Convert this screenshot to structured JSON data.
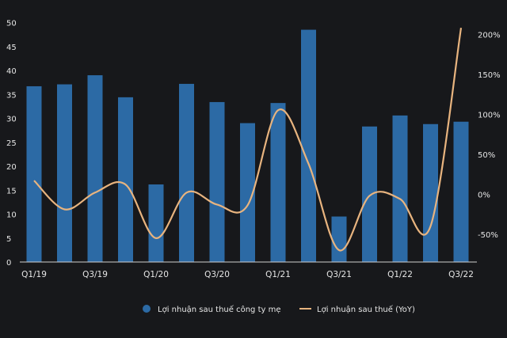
{
  "chart_data": {
    "type": "bar+line",
    "title": "",
    "categories": [
      "Q1/19",
      "Q2/19",
      "Q3/19",
      "Q4/19",
      "Q1/20",
      "Q2/20",
      "Q3/20",
      "Q4/20",
      "Q1/21",
      "Q2/21",
      "Q3/21",
      "Q4/21",
      "Q1/22",
      "Q2/22",
      "Q3/22"
    ],
    "x_tick_labels": [
      "Q1/19",
      "Q3/19",
      "Q1/20",
      "Q3/20",
      "Q1/21",
      "Q3/21",
      "Q1/22",
      "Q3/22"
    ],
    "series": [
      {
        "name": "Lợi nhuận sau thuế công ty mẹ",
        "type": "bar",
        "axis": "left",
        "color": "#2c6aa5",
        "values": [
          36.7,
          37.1,
          39.0,
          34.4,
          16.2,
          37.2,
          33.4,
          29.0,
          33.2,
          48.5,
          9.5,
          28.3,
          30.6,
          28.8,
          29.3
        ]
      },
      {
        "name": "Lợi nhuận sau thuế (YoY)",
        "type": "line",
        "axis": "right",
        "color": "#e8b47f",
        "values": [
          17,
          -19,
          2,
          12,
          -55,
          2,
          -13,
          -14,
          105,
          38,
          -70,
          -2,
          -6,
          -40,
          208
        ]
      }
    ],
    "left_axis": {
      "ylim": [
        0,
        50
      ],
      "ticks": [
        "0",
        "5",
        "10",
        "15",
        "20",
        "25",
        "30",
        "35",
        "40",
        "45",
        "50"
      ]
    },
    "right_axis": {
      "ylim": [
        -85,
        210
      ],
      "ticks": [
        "-50%",
        "0%",
        "50%",
        "100%",
        "150%",
        "200%"
      ],
      "tick_values": [
        -50,
        0,
        50,
        100,
        150,
        200
      ]
    },
    "legend": {
      "placement": "bottom",
      "items": [
        "Lợi nhuận sau thuế công ty mẹ",
        "Lợi nhuận sau thuế (YoY)"
      ]
    },
    "grid": false
  }
}
